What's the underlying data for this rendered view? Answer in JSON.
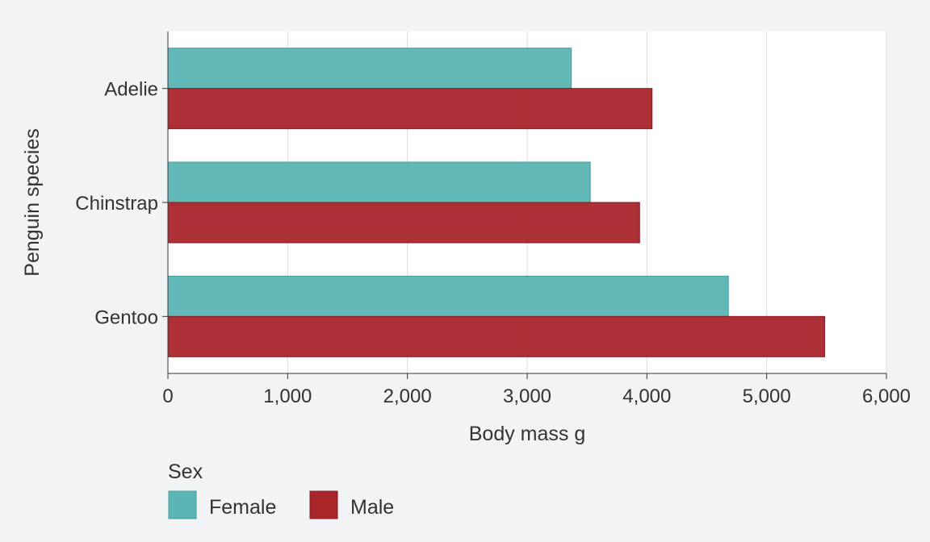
{
  "chart_data": {
    "type": "bar",
    "orientation": "horizontal",
    "categories": [
      "Adelie",
      "Chinstrap",
      "Gentoo"
    ],
    "series": [
      {
        "name": "Female",
        "values": [
          3369,
          3527,
          4680
        ],
        "color": "#5ab5b4"
      },
      {
        "name": "Male",
        "values": [
          4043,
          3939,
          5485
        ],
        "color": "#a8252a"
      }
    ],
    "xlabel": "Body mass g",
    "ylabel": "Penguin species",
    "xlim": [
      0,
      6000
    ],
    "x_ticks": [
      0,
      1000,
      2000,
      3000,
      4000,
      5000,
      6000
    ],
    "x_tick_labels": [
      "0",
      "1,000",
      "2,000",
      "3,000",
      "4,000",
      "5,000",
      "6,000"
    ],
    "grid": "vertical",
    "legend": {
      "title": "Sex",
      "position": "bottom-left"
    },
    "colors": {
      "background": "#f2f3f5",
      "panel": "#ffffff",
      "grid": "#dddddd"
    }
  }
}
